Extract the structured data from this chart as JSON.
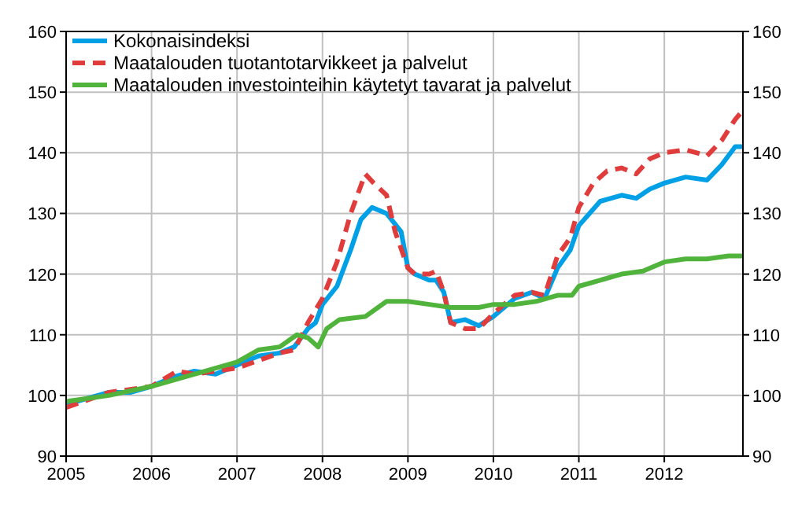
{
  "chart_data": {
    "type": "line",
    "xlim": [
      2005,
      2012.92
    ],
    "xticks": [
      2005,
      2006,
      2007,
      2008,
      2009,
      2010,
      2011,
      2012
    ],
    "ylim": [
      90,
      160
    ],
    "yticks": [
      90,
      100,
      110,
      120,
      130,
      140,
      150,
      160
    ],
    "y2lim": [
      90,
      160
    ],
    "y2ticks": [
      90,
      100,
      110,
      120,
      130,
      140,
      150,
      160
    ],
    "grid": true,
    "legend": "top left",
    "series": [
      {
        "name": "Kokonaisindeksi",
        "color": "#00a0e6",
        "line_style": "solid",
        "x": [
          2005,
          2005.25,
          2005.5,
          2005.75,
          2006,
          2006.25,
          2006.5,
          2006.75,
          2007,
          2007.25,
          2007.5,
          2007.67,
          2007.83,
          2007.92,
          2008,
          2008.17,
          2008.33,
          2008.45,
          2008.58,
          2008.75,
          2008.92,
          2009,
          2009.08,
          2009.25,
          2009.33,
          2009.42,
          2009.5,
          2009.67,
          2009.83,
          2010,
          2010.25,
          2010.45,
          2010.6,
          2010.75,
          2010.9,
          2011,
          2011.25,
          2011.5,
          2011.67,
          2011.83,
          2012,
          2012.25,
          2012.5,
          2012.67,
          2012.83,
          2012.92
        ],
        "values": [
          98.5,
          99.5,
          100.5,
          100.5,
          101.5,
          103,
          104,
          103.5,
          105,
          106.5,
          107,
          108,
          111,
          112,
          115,
          118,
          124,
          129,
          131,
          130,
          127,
          121,
          120,
          119,
          119,
          117,
          112,
          112.5,
          111.5,
          113,
          116,
          117,
          116,
          121,
          124,
          128,
          132,
          133,
          132.5,
          134,
          135,
          136,
          135.5,
          138,
          141,
          141
        ]
      },
      {
        "name": "Maatalouden tuotantotarvikkeet ja palvelut",
        "color": "#e03c3c",
        "line_style": "dashed",
        "x": [
          2005,
          2005.5,
          2006,
          2006.3,
          2006.5,
          2006.75,
          2007,
          2007.5,
          2007.67,
          2007.83,
          2008,
          2008.17,
          2008.33,
          2008.5,
          2008.6,
          2008.75,
          2008.85,
          2009,
          2009.08,
          2009.25,
          2009.33,
          2009.42,
          2009.5,
          2009.67,
          2009.83,
          2010,
          2010.25,
          2010.45,
          2010.6,
          2010.75,
          2010.9,
          2011,
          2011.17,
          2011.33,
          2011.5,
          2011.67,
          2011.83,
          2012,
          2012.25,
          2012.5,
          2012.67,
          2012.83,
          2012.92
        ],
        "values": [
          98,
          100.5,
          101.5,
          104,
          103.5,
          104,
          104.5,
          107,
          107.5,
          112,
          116,
          122,
          130,
          136.5,
          135,
          133,
          127,
          121,
          120,
          120,
          120.5,
          117,
          112,
          111,
          111,
          113.5,
          116.5,
          117,
          116.5,
          123,
          126,
          131,
          135,
          137,
          137.5,
          136.5,
          139,
          140,
          140.5,
          139.5,
          142,
          145.5,
          147
        ]
      },
      {
        "name": "Maatalouden investointeihin käytetyt tavarat ja palvelut",
        "color": "#50b43c",
        "line_style": "solid",
        "x": [
          2005,
          2005.5,
          2006,
          2006.5,
          2006.75,
          2007,
          2007.25,
          2007.5,
          2007.7,
          2007.83,
          2007.95,
          2008.05,
          2008.2,
          2008.5,
          2008.75,
          2009,
          2009.25,
          2009.5,
          2009.83,
          2010,
          2010.25,
          2010.5,
          2010.75,
          2010.92,
          2011,
          2011.25,
          2011.5,
          2011.75,
          2012,
          2012.25,
          2012.5,
          2012.75,
          2012.92
        ],
        "values": [
          99,
          100,
          101.5,
          103.5,
          104.5,
          105.5,
          107.5,
          108,
          110,
          109.5,
          108,
          111,
          112.5,
          113,
          115.5,
          115.5,
          115,
          114.5,
          114.5,
          115,
          115,
          115.5,
          116.5,
          116.5,
          118,
          119,
          120,
          120.5,
          122,
          122.5,
          122.5,
          123,
          123
        ]
      }
    ]
  }
}
